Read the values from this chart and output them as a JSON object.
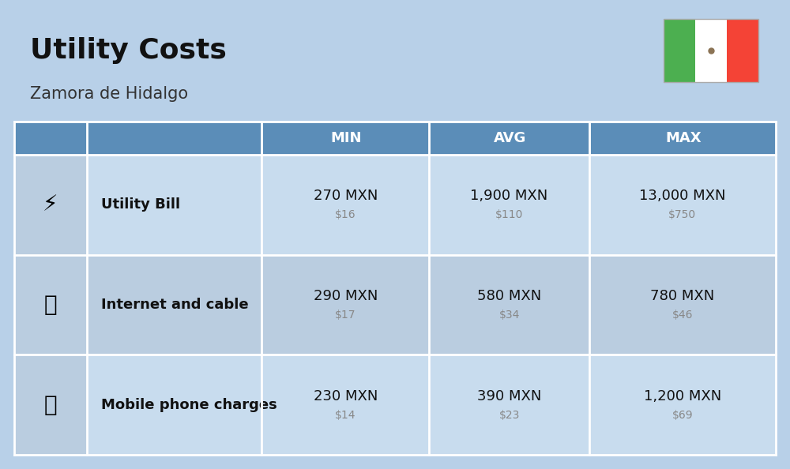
{
  "title": "Utility Costs",
  "subtitle": "Zamora de Hidalgo",
  "background_color": "#b8d0e8",
  "header_color": "#5b8db8",
  "header_text_color": "#ffffff",
  "row_color_light": "#c8dcee",
  "row_color_dark": "#bacde0",
  "icon_col_color": "#bacde0",
  "col_headers": [
    "MIN",
    "AVG",
    "MAX"
  ],
  "rows": [
    {
      "label": "Utility Bill",
      "min_mxn": "270 MXN",
      "min_usd": "$16",
      "avg_mxn": "1,900 MXN",
      "avg_usd": "$110",
      "max_mxn": "13,000 MXN",
      "max_usd": "$750"
    },
    {
      "label": "Internet and cable",
      "min_mxn": "290 MXN",
      "min_usd": "$17",
      "avg_mxn": "580 MXN",
      "avg_usd": "$34",
      "max_mxn": "780 MXN",
      "max_usd": "$46"
    },
    {
      "label": "Mobile phone charges",
      "min_mxn": "230 MXN",
      "min_usd": "$14",
      "avg_mxn": "390 MXN",
      "avg_usd": "$23",
      "max_mxn": "1,200 MXN",
      "max_usd": "$69"
    }
  ],
  "flag_green": "#4caf50",
  "flag_white": "#ffffff",
  "flag_red": "#f44336",
  "title_color": "#111111",
  "subtitle_color": "#333333",
  "label_color": "#111111",
  "value_color": "#111111",
  "usd_color": "#888888",
  "divider_color": "#ffffff",
  "title_fontsize": 26,
  "subtitle_fontsize": 15,
  "header_fontsize": 13,
  "label_fontsize": 13,
  "value_fontsize": 13,
  "usd_fontsize": 10
}
